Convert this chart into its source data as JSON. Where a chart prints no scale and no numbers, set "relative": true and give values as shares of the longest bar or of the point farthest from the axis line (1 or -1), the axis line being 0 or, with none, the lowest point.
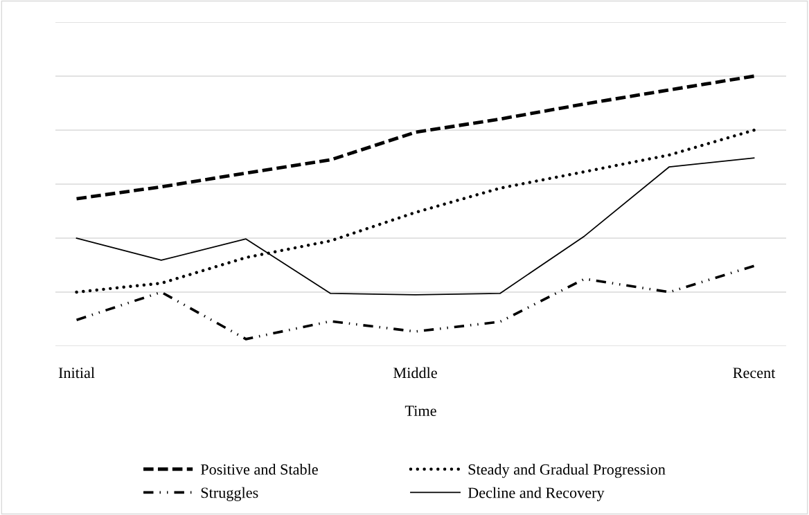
{
  "chart_data": {
    "type": "line",
    "relative": true,
    "xlabel": "Time",
    "categories": [
      "Initial",
      null,
      null,
      null,
      "Middle",
      null,
      null,
      null,
      "Recent"
    ],
    "series": [
      {
        "name": "Positive and Stable",
        "color": "#000000",
        "line_style": "dashed",
        "values": [
          0.546,
          0.59,
          0.641,
          0.69,
          0.792,
          0.841,
          0.897,
          0.949,
          1.0
        ]
      },
      {
        "name": "Steady and Gradual Progression",
        "color": "#000000",
        "line_style": "dotted",
        "values": [
          0.2,
          0.233,
          0.328,
          0.39,
          0.495,
          0.585,
          0.646,
          0.708,
          0.8
        ]
      },
      {
        "name": "Struggles",
        "color": "#000000",
        "line_style": "dashdotdot",
        "values": [
          0.097,
          0.2,
          0.026,
          0.092,
          0.054,
          0.09,
          0.249,
          0.2,
          0.297
        ]
      },
      {
        "name": "Decline and Recovery",
        "color": "#000000",
        "line_style": "solid",
        "values": [
          0.4,
          0.318,
          0.397,
          0.195,
          0.19,
          0.195,
          0.408,
          0.664,
          0.697
        ]
      }
    ],
    "grid": "y",
    "legend": "bottom"
  }
}
